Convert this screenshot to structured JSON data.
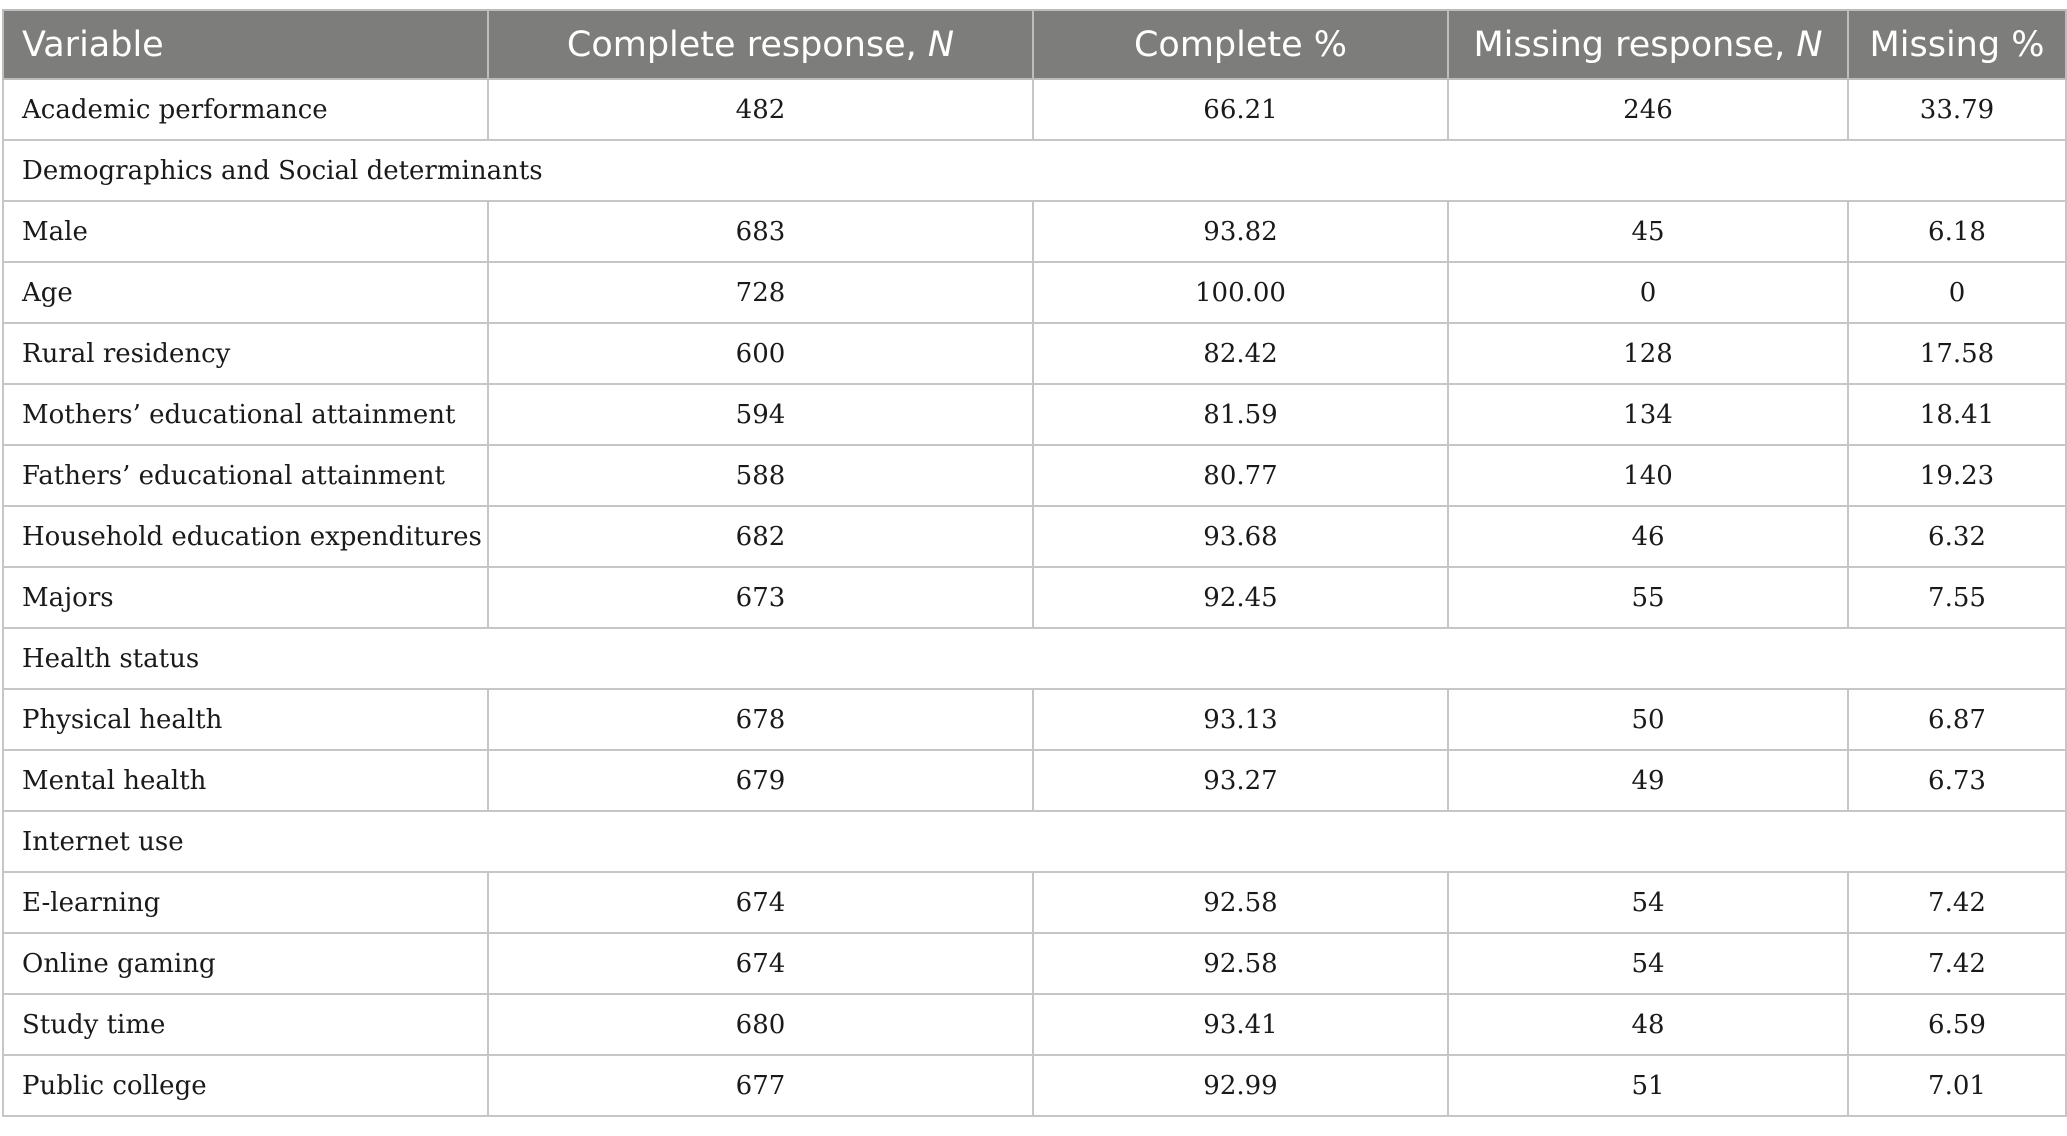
{
  "table": {
    "headers": [
      {
        "text": "Variable",
        "italic": ""
      },
      {
        "text": "Complete response, ",
        "italic": "N"
      },
      {
        "text": "Complete %",
        "italic": ""
      },
      {
        "text": "Missing response, ",
        "italic": "N"
      },
      {
        "text": "Missing %",
        "italic": ""
      }
    ],
    "rows": [
      {
        "label": "Academic performance",
        "values": [
          "482",
          "66.21",
          "246",
          "33.79"
        ]
      },
      {
        "section": "Demographics and Social determinants"
      },
      {
        "label": "Male",
        "values": [
          "683",
          "93.82",
          "45",
          "6.18"
        ]
      },
      {
        "label": "Age",
        "values": [
          "728",
          "100.00",
          "0",
          "0"
        ]
      },
      {
        "label": "Rural residency",
        "values": [
          "600",
          "82.42",
          "128",
          "17.58"
        ]
      },
      {
        "label": "Mothers’ educational attainment",
        "values": [
          "594",
          "81.59",
          "134",
          "18.41"
        ]
      },
      {
        "label": "Fathers’ educational attainment",
        "values": [
          "588",
          "80.77",
          "140",
          "19.23"
        ]
      },
      {
        "label": "Household education expenditures",
        "values": [
          "682",
          "93.68",
          "46",
          "6.32"
        ]
      },
      {
        "label": "Majors",
        "values": [
          "673",
          "92.45",
          "55",
          "7.55"
        ]
      },
      {
        "section": "Health status"
      },
      {
        "label": "Physical health",
        "values": [
          "678",
          "93.13",
          "50",
          "6.87"
        ]
      },
      {
        "label": "Mental health",
        "values": [
          "679",
          "93.27",
          "49",
          "6.73"
        ]
      },
      {
        "section": "Internet use"
      },
      {
        "label": "E-learning",
        "values": [
          "674",
          "92.58",
          "54",
          "7.42"
        ]
      },
      {
        "label": "Online gaming",
        "values": [
          "674",
          "92.58",
          "54",
          "7.42"
        ]
      },
      {
        "label": "Study time",
        "values": [
          "680",
          "93.41",
          "48",
          "6.59"
        ]
      },
      {
        "label": "Public college",
        "values": [
          "677",
          "92.99",
          "51",
          "7.01"
        ]
      }
    ]
  }
}
